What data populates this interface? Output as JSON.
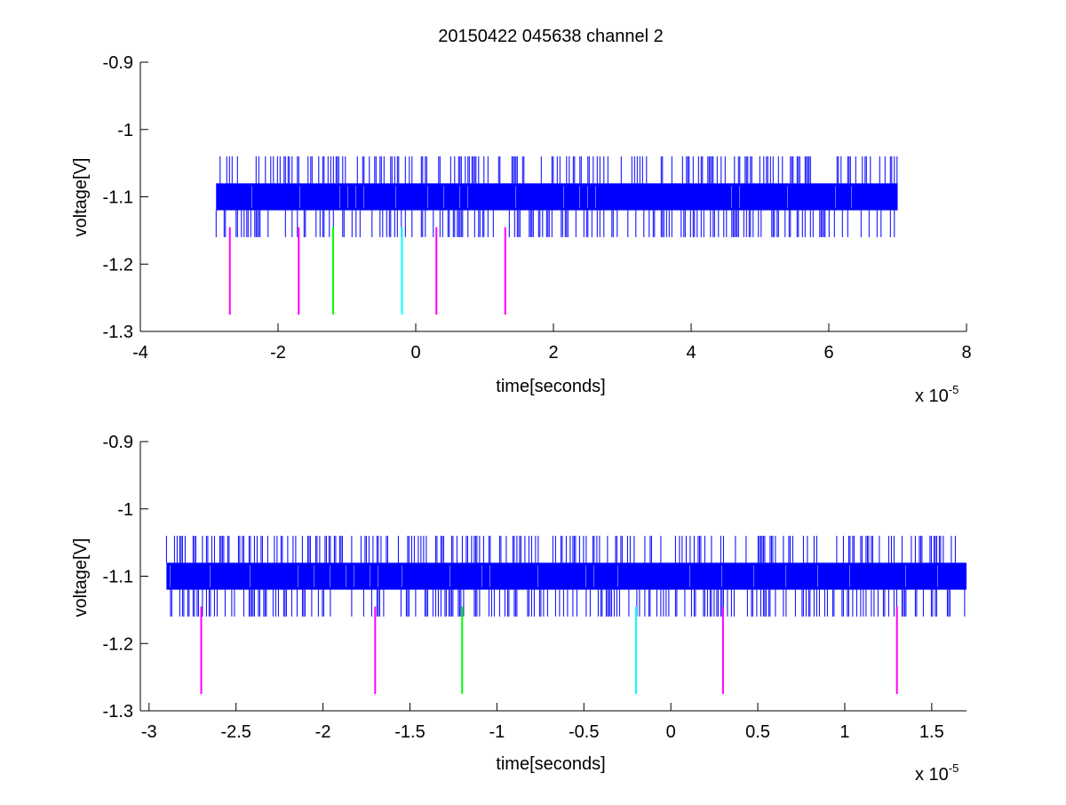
{
  "figure": {
    "title": "20150422 045638 channel 2"
  },
  "chart_data": [
    {
      "type": "line",
      "xlabel": "time[seconds]",
      "ylabel": "voltage[V]",
      "x_multiplier": "x 10",
      "x_exponent": "-5",
      "xlim": [
        -4,
        8
      ],
      "ylim": [
        -1.3,
        -0.9
      ],
      "xticks": [
        -4,
        -2,
        0,
        2,
        4,
        6,
        8
      ],
      "xtick_labels": [
        "-4",
        "-2",
        "0",
        "2",
        "4",
        "6",
        "8"
      ],
      "yticks": [
        -0.9,
        -1.0,
        -1.1,
        -1.2,
        -1.3
      ],
      "ytick_labels": [
        "-0.9",
        "-1",
        "-1.1",
        "-1.2",
        "-1.3"
      ],
      "grid": false,
      "signal": {
        "name": "voltage",
        "color": "#0000ff",
        "x_range": [
          -2.9,
          7.0
        ],
        "band": [
          -1.12,
          -1.08
        ],
        "spike_high": -1.04,
        "spike_low": -1.16
      },
      "markers": [
        {
          "x": -2.7,
          "color": "#ff00ff",
          "y": [
            -1.145,
            -1.275
          ]
        },
        {
          "x": -1.7,
          "color": "#ff00ff",
          "y": [
            -1.145,
            -1.275
          ]
        },
        {
          "x": -1.2,
          "color": "#00ff00",
          "y": [
            -1.145,
            -1.275
          ]
        },
        {
          "x": -0.2,
          "color": "#00ffff",
          "y": [
            -1.145,
            -1.275
          ]
        },
        {
          "x": 0.3,
          "color": "#ff00ff",
          "y": [
            -1.145,
            -1.275
          ]
        },
        {
          "x": 1.3,
          "color": "#ff00ff",
          "y": [
            -1.145,
            -1.275
          ]
        }
      ]
    },
    {
      "type": "line",
      "xlabel": "time[seconds]",
      "ylabel": "voltage[V]",
      "x_multiplier": "x 10",
      "x_exponent": "-5",
      "xlim": [
        -3.05,
        1.7
      ],
      "ylim": [
        -1.3,
        -0.9
      ],
      "xticks": [
        -3,
        -2.5,
        -2,
        -1.5,
        -1,
        -0.5,
        0,
        0.5,
        1,
        1.5
      ],
      "xtick_labels": [
        "-3",
        "-2.5",
        "-2",
        "-1.5",
        "-1",
        "-0.5",
        "0",
        "0.5",
        "1",
        "1.5"
      ],
      "yticks": [
        -0.9,
        -1.0,
        -1.1,
        -1.2,
        -1.3
      ],
      "ytick_labels": [
        "-0.9",
        "-1",
        "-1.1",
        "-1.2",
        "-1.3"
      ],
      "grid": false,
      "signal": {
        "name": "voltage",
        "color": "#0000ff",
        "x_range": [
          -2.9,
          1.7
        ],
        "band": [
          -1.12,
          -1.08
        ],
        "spike_high": -1.04,
        "spike_low": -1.16
      },
      "markers": [
        {
          "x": -2.7,
          "color": "#ff00ff",
          "y": [
            -1.145,
            -1.275
          ]
        },
        {
          "x": -1.7,
          "color": "#ff00ff",
          "y": [
            -1.145,
            -1.275
          ]
        },
        {
          "x": -1.2,
          "color": "#00ff00",
          "y": [
            -1.145,
            -1.275
          ]
        },
        {
          "x": -0.2,
          "color": "#00ffff",
          "y": [
            -1.145,
            -1.275
          ]
        },
        {
          "x": 0.3,
          "color": "#ff00ff",
          "y": [
            -1.145,
            -1.275
          ]
        },
        {
          "x": 1.3,
          "color": "#ff00ff",
          "y": [
            -1.145,
            -1.275
          ]
        }
      ]
    }
  ]
}
